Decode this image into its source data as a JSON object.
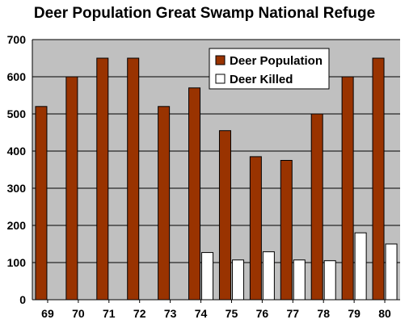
{
  "chart_data": {
    "type": "bar",
    "title": "Deer Population Great Swamp National Refuge",
    "xlabel": "",
    "ylabel": "",
    "categories": [
      "69",
      "70",
      "71",
      "72",
      "73",
      "74",
      "75",
      "76",
      "77",
      "78",
      "79",
      "80"
    ],
    "series": [
      {
        "name": "Deer Population",
        "color": "#993300",
        "values": [
          520,
          600,
          650,
          650,
          520,
          570,
          455,
          385,
          375,
          500,
          600,
          650
        ]
      },
      {
        "name": "Deer Killed",
        "color": "#ffffff",
        "values": [
          0,
          0,
          0,
          0,
          0,
          127,
          107,
          129,
          107,
          105,
          180,
          150
        ]
      }
    ],
    "ylim": [
      0,
      700
    ],
    "yticks": [
      "0",
      "100",
      "200",
      "300",
      "400",
      "500",
      "600",
      "700"
    ],
    "grid": true,
    "legend_position": "top-right",
    "plot_background": "#c0c0c0"
  }
}
